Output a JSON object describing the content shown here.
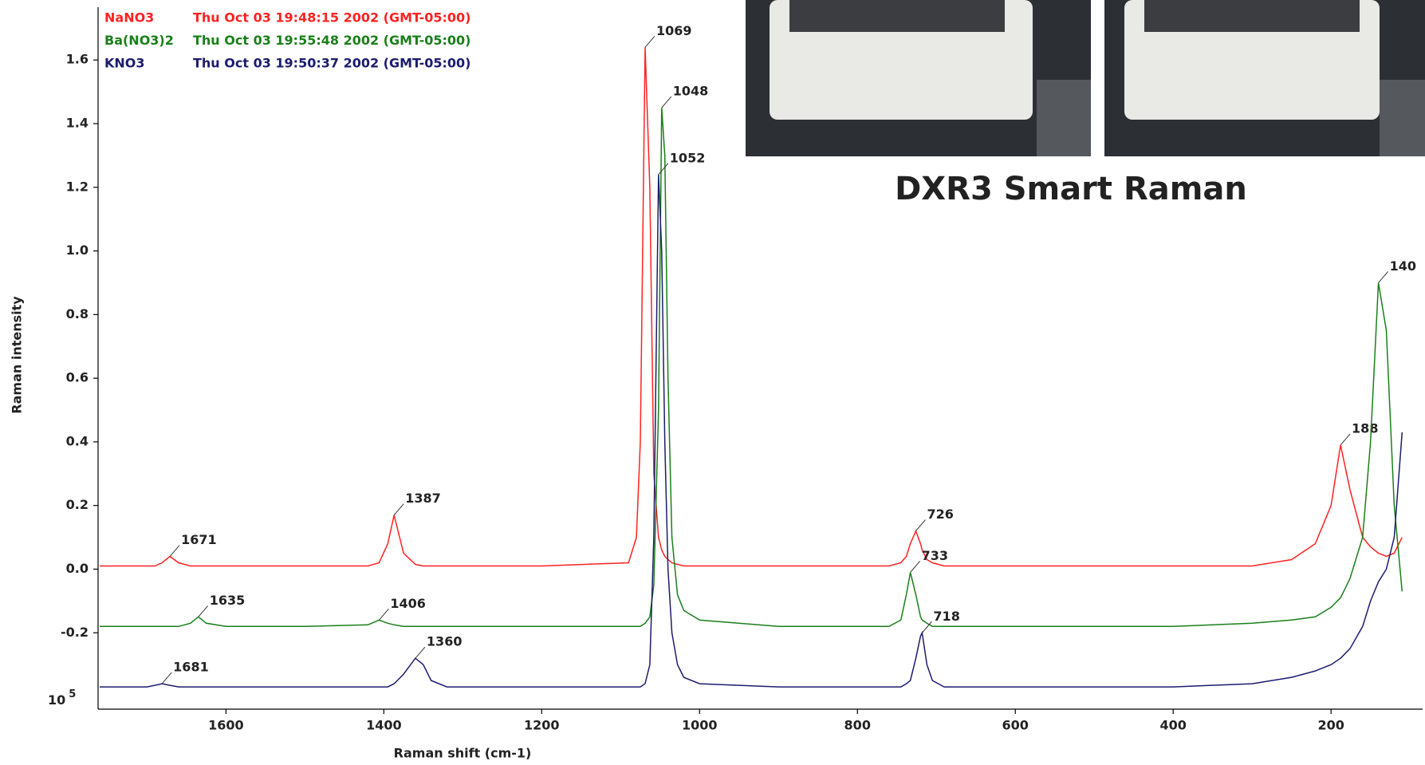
{
  "chart_data": {
    "type": "line",
    "caption": "DXR3 Smart Raman",
    "xlabel": "Raman shift (cm-1)",
    "ylabel": "Raman intensity",
    "y_scale_label": "10",
    "y_scale_exponent": "5",
    "xlim": [
      1762,
      84
    ],
    "ylim": [
      -0.44,
      1.766
    ],
    "xticks": [
      1600,
      1400,
      1200,
      1000,
      800,
      600,
      400,
      200
    ],
    "yticks": [
      {
        "value": 1.6,
        "label": "1.6"
      },
      {
        "value": 1.4,
        "label": "1.4"
      },
      {
        "value": 1.2,
        "label": "1.2"
      },
      {
        "value": 1.0,
        "label": "1.0"
      },
      {
        "value": 0.8,
        "label": "0.8"
      },
      {
        "value": 0.6,
        "label": "0.6"
      },
      {
        "value": 0.4,
        "label": "0.4"
      },
      {
        "value": 0.2,
        "label": "0.2"
      },
      {
        "value": 0.0,
        "label": "0.0"
      },
      {
        "value": -0.2,
        "label": "-0.2"
      }
    ],
    "x": [
      1760,
      1700,
      1690,
      1681,
      1671,
      1660,
      1645,
      1635,
      1625,
      1600,
      1500,
      1420,
      1406,
      1395,
      1387,
      1375,
      1360,
      1350,
      1340,
      1320,
      1200,
      1090,
      1080,
      1075,
      1069,
      1063,
      1058,
      1052,
      1048,
      1044,
      1040,
      1035,
      1028,
      1020,
      1000,
      900,
      760,
      745,
      738,
      733,
      726,
      720,
      718,
      712,
      705,
      690,
      600,
      400,
      300,
      250,
      220,
      200,
      188,
      176,
      160,
      150,
      140,
      130,
      120,
      110
    ],
    "series": [
      {
        "name": "NaNO3",
        "timestamp": "Thu Oct 03 19:48:15 2002 (GMT-05:00)",
        "color": "#ff2222",
        "values": [
          0.01,
          0.01,
          0.01,
          0.02,
          0.04,
          0.02,
          0.01,
          0.01,
          0.01,
          0.01,
          0.01,
          0.01,
          0.02,
          0.08,
          0.17,
          0.05,
          0.015,
          0.01,
          0.01,
          0.01,
          0.01,
          0.02,
          0.1,
          0.4,
          1.64,
          1.2,
          0.3,
          0.1,
          0.06,
          0.04,
          0.03,
          0.02,
          0.015,
          0.01,
          0.01,
          0.01,
          0.01,
          0.02,
          0.04,
          0.08,
          0.12,
          0.08,
          0.06,
          0.03,
          0.02,
          0.01,
          0.01,
          0.01,
          0.01,
          0.03,
          0.08,
          0.2,
          0.39,
          0.25,
          0.1,
          0.07,
          0.05,
          0.04,
          0.05,
          0.1
        ],
        "peaks": [
          {
            "x": 1671,
            "y": 0.04
          },
          {
            "x": 1387,
            "y": 0.17
          },
          {
            "x": 1069,
            "y": 1.64
          },
          {
            "x": 726,
            "y": 0.12
          },
          {
            "x": 188,
            "y": 0.39
          }
        ]
      },
      {
        "name": "Ba(NO3)2",
        "timestamp": "Thu Oct 03 19:55:48 2002 (GMT-05:00)",
        "color": "#1a7f1a",
        "values": [
          -0.18,
          -0.18,
          -0.18,
          -0.18,
          -0.18,
          -0.18,
          -0.17,
          -0.15,
          -0.17,
          -0.18,
          -0.18,
          -0.175,
          -0.16,
          -0.17,
          -0.175,
          -0.18,
          -0.18,
          -0.18,
          -0.18,
          -0.18,
          -0.18,
          -0.18,
          -0.18,
          -0.18,
          -0.17,
          -0.15,
          -0.05,
          0.5,
          1.45,
          1.3,
          0.6,
          0.1,
          -0.08,
          -0.13,
          -0.16,
          -0.18,
          -0.18,
          -0.16,
          -0.08,
          -0.01,
          -0.08,
          -0.15,
          -0.16,
          -0.17,
          -0.18,
          -0.18,
          -0.18,
          -0.18,
          -0.17,
          -0.16,
          -0.15,
          -0.12,
          -0.09,
          -0.03,
          0.1,
          0.4,
          0.9,
          0.75,
          0.2,
          -0.07
        ],
        "peaks": [
          {
            "x": 1635,
            "y": -0.15
          },
          {
            "x": 1406,
            "y": -0.16
          },
          {
            "x": 1048,
            "y": 1.45
          },
          {
            "x": 733,
            "y": -0.01
          },
          {
            "x": 140,
            "y": 0.9
          }
        ]
      },
      {
        "name": "KNO3",
        "timestamp": "Thu Oct 03 19:50:37 2002 (GMT-05:00)",
        "color": "#1c1c6e",
        "values": [
          -0.37,
          -0.37,
          -0.365,
          -0.36,
          -0.365,
          -0.37,
          -0.37,
          -0.37,
          -0.37,
          -0.37,
          -0.37,
          -0.37,
          -0.37,
          -0.37,
          -0.36,
          -0.33,
          -0.28,
          -0.3,
          -0.35,
          -0.37,
          -0.37,
          -0.37,
          -0.37,
          -0.37,
          -0.36,
          -0.3,
          0.1,
          1.24,
          1.0,
          0.4,
          0.0,
          -0.2,
          -0.3,
          -0.34,
          -0.36,
          -0.37,
          -0.37,
          -0.37,
          -0.36,
          -0.35,
          -0.28,
          -0.21,
          -0.2,
          -0.3,
          -0.35,
          -0.37,
          -0.37,
          -0.37,
          -0.36,
          -0.34,
          -0.32,
          -0.3,
          -0.28,
          -0.25,
          -0.18,
          -0.1,
          -0.04,
          0.0,
          0.1,
          0.43
        ],
        "peaks": [
          {
            "x": 1681,
            "y": -0.36
          },
          {
            "x": 1360,
            "y": -0.28
          },
          {
            "x": 1052,
            "y": 1.24
          },
          {
            "x": 718,
            "y": -0.2
          }
        ]
      }
    ]
  }
}
